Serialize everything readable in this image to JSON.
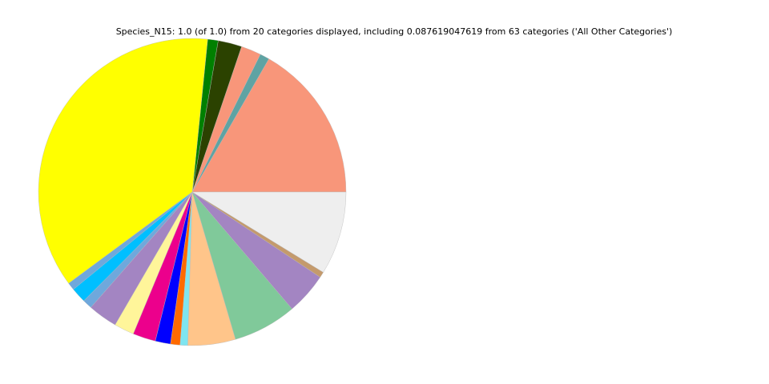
{
  "chart_data": {
    "type": "pie",
    "title": "Species_N15: 1.0 (of 1.0) from 20 categories displayed, including 0.087619047619 from 63 categories ('All Other Categories')",
    "values": [
      0.167,
      0.01,
      0.021,
      0.025,
      0.011,
      0.3674,
      0.008,
      0.016,
      0.01,
      0.031,
      0.021,
      0.024,
      0.016,
      0.01,
      0.008,
      0.05,
      0.067,
      0.044,
      0.006,
      0.0876
    ],
    "colors": [
      "#f8967a",
      "#5fa3a3",
      "#f8967a",
      "#2b4200",
      "#008000",
      "#ffff00",
      "#6fa8dc",
      "#00bfff",
      "#6fa8dc",
      "#a385c2",
      "#fff59a",
      "#ec008c",
      "#0000ff",
      "#ff6a00",
      "#7fe5f0",
      "#ffc58a",
      "#80c99a",
      "#a385c2",
      "#c49a6c",
      "#eeeeee"
    ]
  }
}
